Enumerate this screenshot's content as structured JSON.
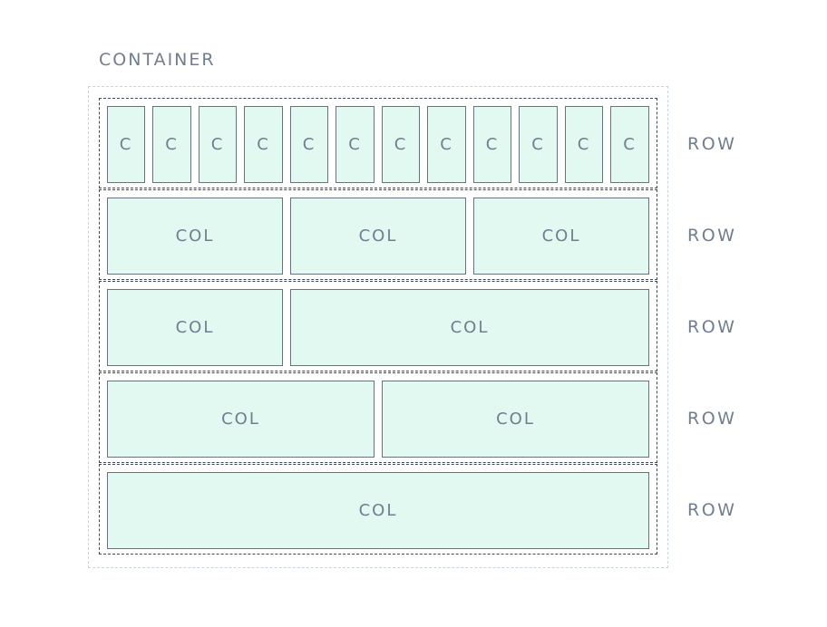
{
  "container": {
    "label": "CONTAINER"
  },
  "rows": [
    {
      "label": "ROW",
      "cols": [
        {
          "label": "C"
        },
        {
          "label": "C"
        },
        {
          "label": "C"
        },
        {
          "label": "C"
        },
        {
          "label": "C"
        },
        {
          "label": "C"
        },
        {
          "label": "C"
        },
        {
          "label": "C"
        },
        {
          "label": "C"
        },
        {
          "label": "C"
        },
        {
          "label": "C"
        },
        {
          "label": "C"
        }
      ]
    },
    {
      "label": "ROW",
      "cols": [
        {
          "label": "COL"
        },
        {
          "label": "COL"
        },
        {
          "label": "COL"
        }
      ]
    },
    {
      "label": "ROW",
      "cols": [
        {
          "label": "COL"
        },
        {
          "label": "COL"
        }
      ]
    },
    {
      "label": "ROW",
      "cols": [
        {
          "label": "COL"
        },
        {
          "label": "COL"
        }
      ]
    },
    {
      "label": "ROW",
      "cols": [
        {
          "label": "COL"
        }
      ]
    }
  ],
  "colors": {
    "col_fill": "#e1f9f0",
    "col_border": "#67747d",
    "row_border": "#3d4a55",
    "container_border": "#c9d4dc",
    "label_text": "#6f7f8f"
  }
}
